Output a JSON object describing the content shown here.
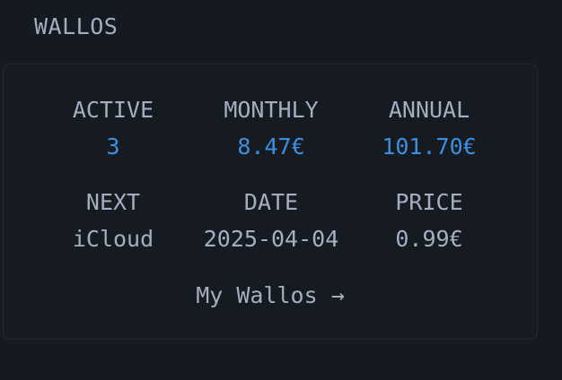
{
  "widget": {
    "title": "WALLOS"
  },
  "stats": {
    "row1": [
      {
        "label": "ACTIVE",
        "value": "3"
      },
      {
        "label": "MONTHLY",
        "value": "8.47€"
      },
      {
        "label": "ANNUAL",
        "value": "101.70€"
      }
    ],
    "row2": [
      {
        "label": "NEXT",
        "value": "iCloud"
      },
      {
        "label": "DATE",
        "value": "2025-04-04"
      },
      {
        "label": "PRICE",
        "value": "0.99€"
      }
    ]
  },
  "link": {
    "label": "My Wallos →"
  },
  "colors": {
    "accent": "#3b8fe0",
    "text": "#a3aec1",
    "background": "#151a21",
    "card": "#161b22"
  }
}
